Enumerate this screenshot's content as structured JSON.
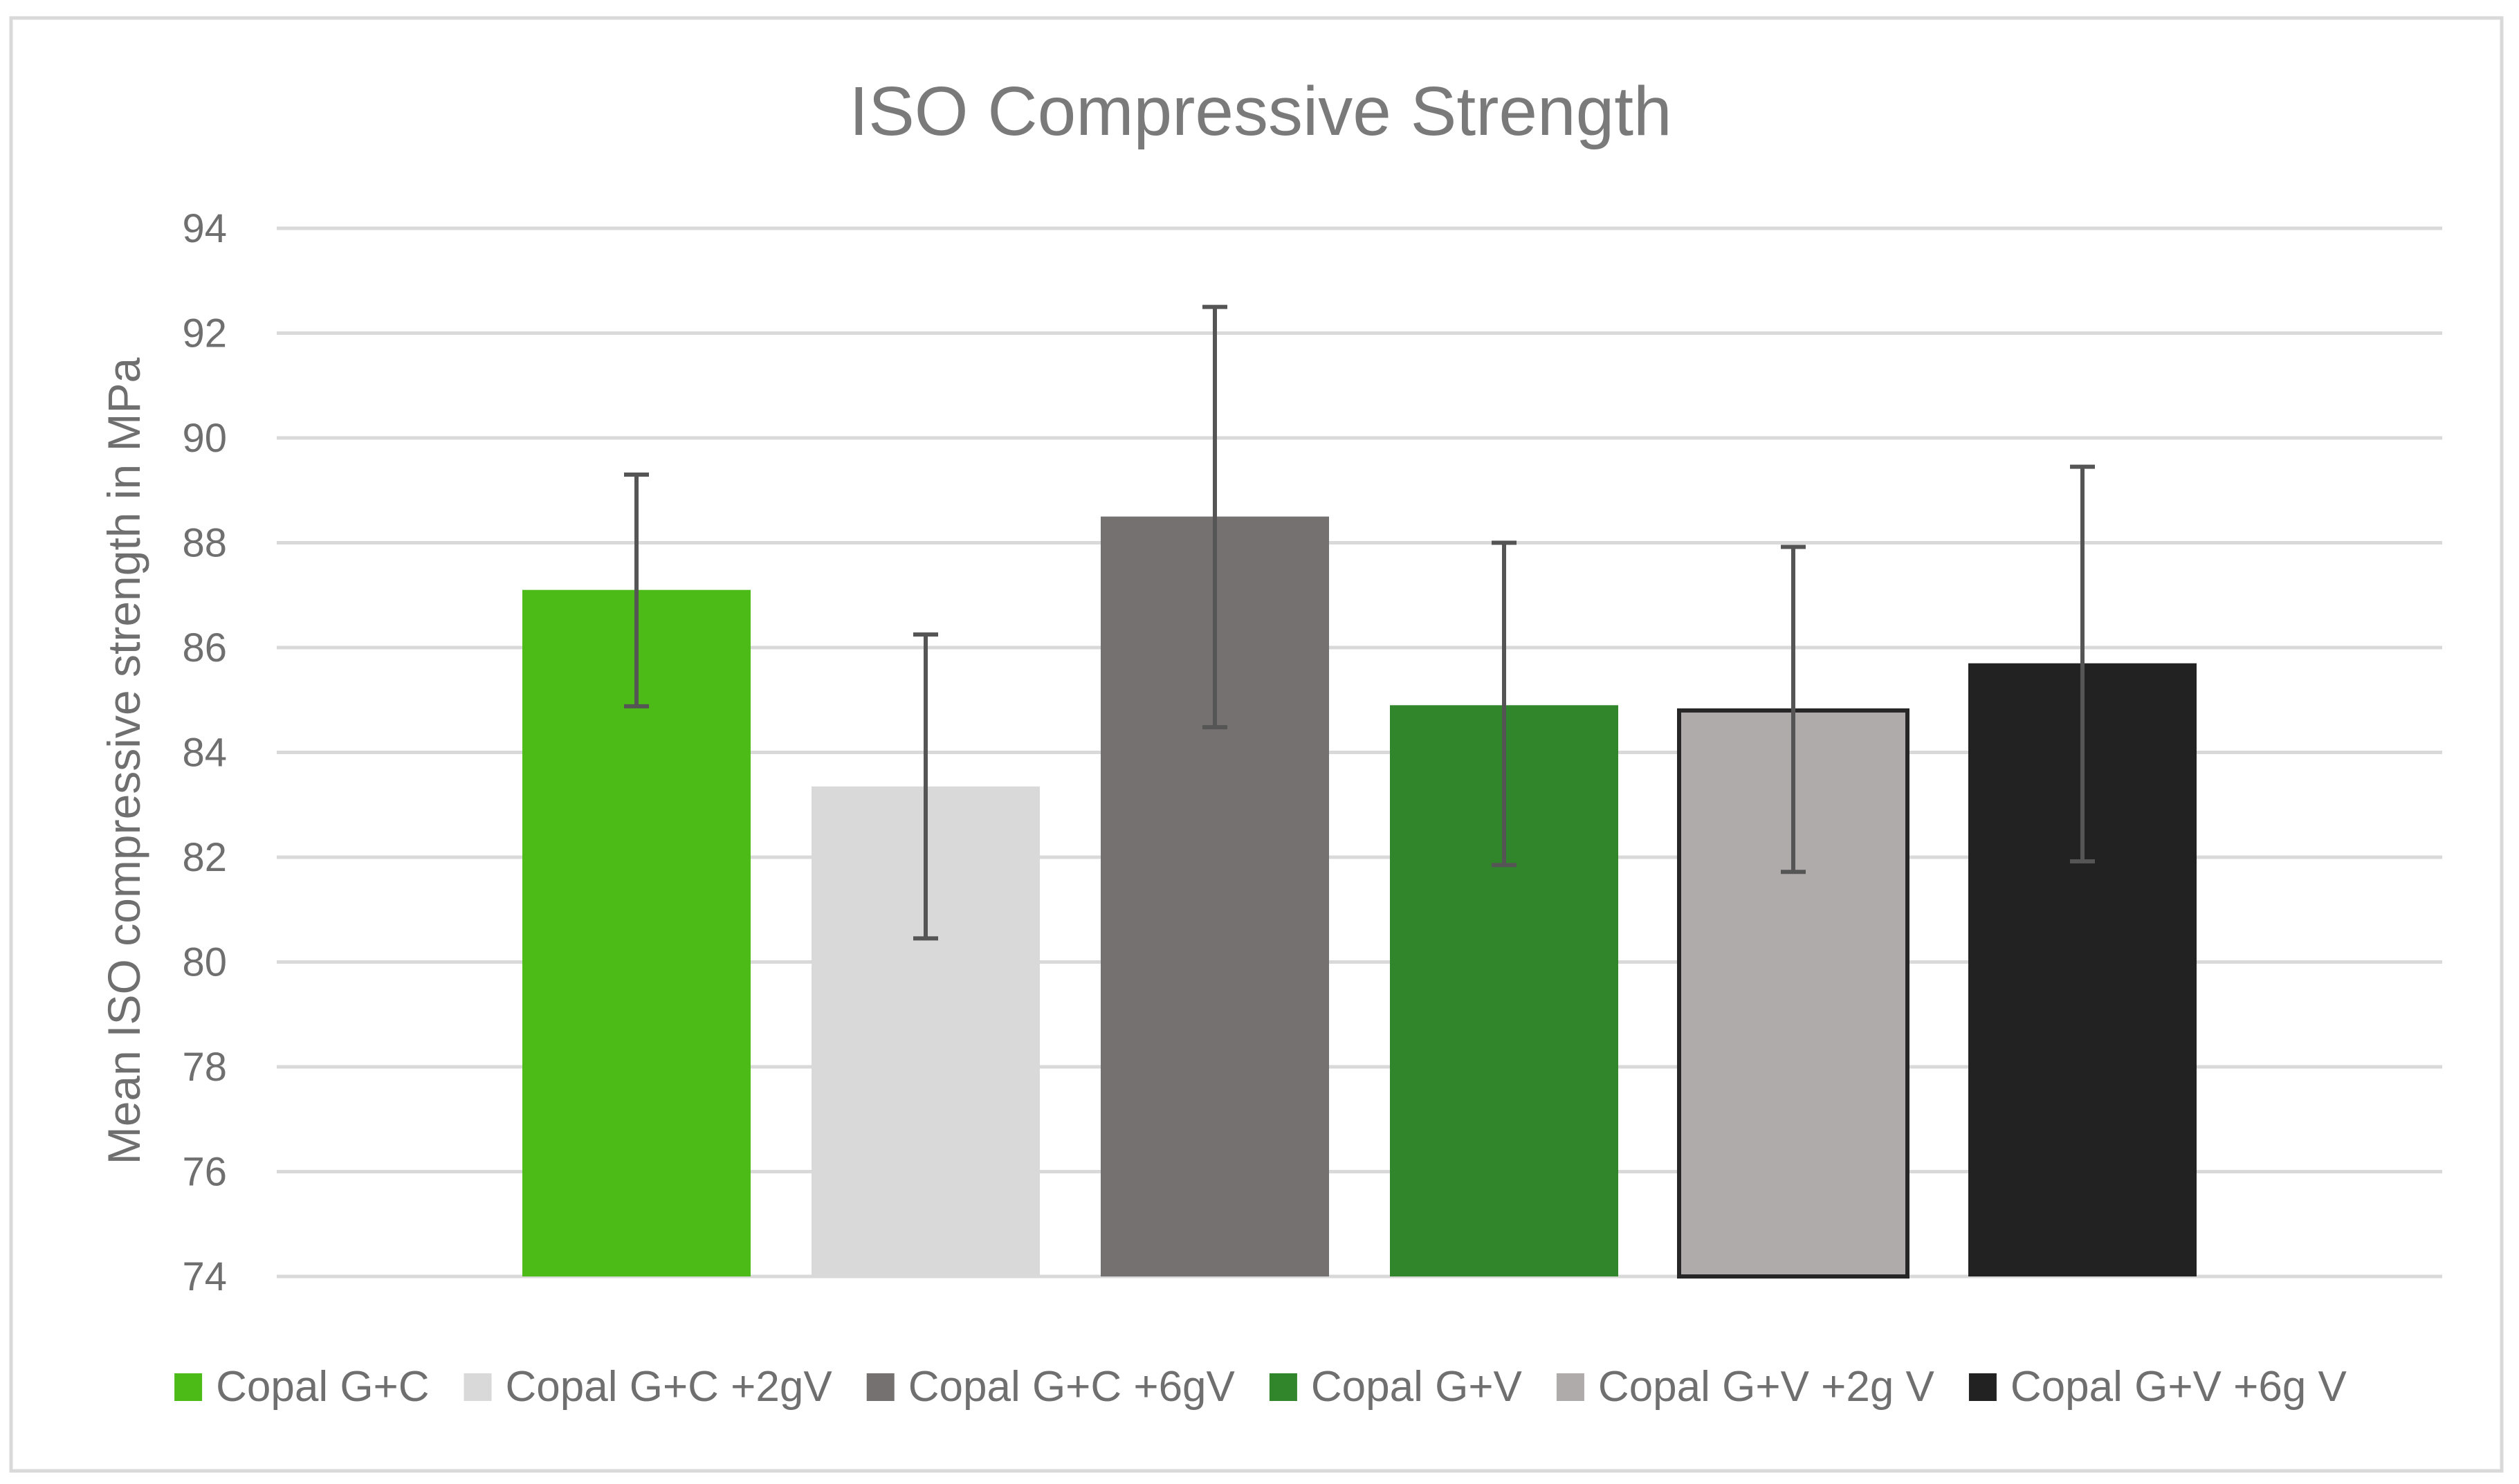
{
  "chart_data": {
    "type": "bar",
    "title": "ISO Compressive Strength",
    "xlabel": "",
    "ylabel": "Mean ISO compressive strength in MPa",
    "ylim": [
      74,
      94
    ],
    "yticks": [
      74,
      76,
      78,
      80,
      82,
      84,
      86,
      88,
      90,
      92,
      94
    ],
    "grid": true,
    "legend_position": "bottom",
    "categories": [
      "Copal G+C",
      "Copal G+C +2gV",
      "Copal G+C +6gV",
      "Copal G+V",
      "Copal G+V +2g V",
      "Copal G+V +6g V"
    ],
    "values": [
      87.1,
      83.35,
      88.5,
      84.9,
      84.8,
      85.7
    ],
    "error_low": [
      84.88,
      80.45,
      84.48,
      81.85,
      81.72,
      81.92
    ],
    "error_high": [
      89.3,
      86.25,
      92.5,
      88.0,
      87.92,
      89.45
    ],
    "colors": [
      "#4cbb17",
      "#d9d9d9",
      "#767171",
      "#31862b",
      "#afabaa",
      "#222222"
    ],
    "bar_outline": [
      false,
      false,
      false,
      false,
      true,
      false
    ]
  }
}
